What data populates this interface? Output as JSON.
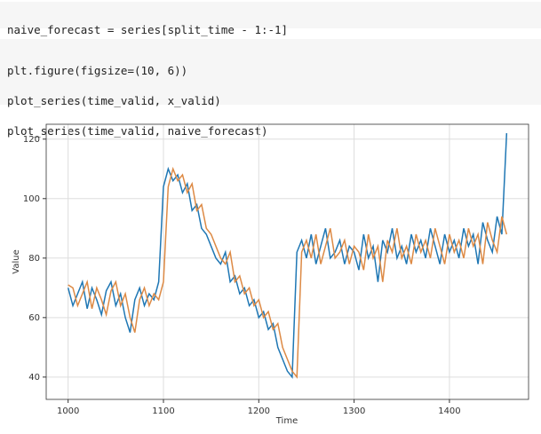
{
  "cells": [
    {
      "lines": [
        "naive_forecast = series[split_time - 1:-1]"
      ]
    },
    {
      "lines": [
        "plt.figure(figsize=(10, 6))",
        "plot_series(time_valid, x_valid)",
        "plot_series(time_valid, naive_forecast)"
      ]
    }
  ],
  "chart_data": {
    "type": "line",
    "xlabel": "Time",
    "ylabel": "Value",
    "x": [
      1000,
      1005,
      1010,
      1015,
      1020,
      1025,
      1030,
      1035,
      1040,
      1045,
      1050,
      1055,
      1060,
      1065,
      1070,
      1075,
      1080,
      1085,
      1090,
      1095,
      1100,
      1105,
      1110,
      1115,
      1120,
      1125,
      1130,
      1135,
      1140,
      1145,
      1150,
      1155,
      1160,
      1165,
      1170,
      1175,
      1180,
      1185,
      1190,
      1195,
      1200,
      1205,
      1210,
      1215,
      1220,
      1225,
      1230,
      1235,
      1240,
      1245,
      1250,
      1255,
      1260,
      1265,
      1270,
      1275,
      1280,
      1285,
      1290,
      1295,
      1300,
      1305,
      1310,
      1315,
      1320,
      1325,
      1330,
      1335,
      1340,
      1345,
      1350,
      1355,
      1360,
      1365,
      1370,
      1375,
      1380,
      1385,
      1390,
      1395,
      1400,
      1405,
      1410,
      1415,
      1420,
      1425,
      1430,
      1435,
      1440,
      1445,
      1450,
      1455,
      1460
    ],
    "series": [
      {
        "name": "x_valid",
        "color": "#1f77b4",
        "values": [
          70,
          64,
          68,
          72,
          63,
          70,
          66,
          61,
          69,
          72,
          64,
          68,
          60,
          55,
          66,
          70,
          64,
          68,
          66,
          72,
          104,
          110,
          106,
          108,
          102,
          105,
          96,
          98,
          90,
          88,
          84,
          80,
          78,
          82,
          72,
          74,
          68,
          70,
          64,
          66,
          60,
          62,
          56,
          58,
          50,
          46,
          42,
          40,
          82,
          86,
          80,
          88,
          78,
          84,
          90,
          80,
          82,
          86,
          78,
          84,
          82,
          76,
          88,
          80,
          84,
          72,
          86,
          82,
          90,
          80,
          84,
          78,
          88,
          82,
          86,
          80,
          90,
          84,
          78,
          88,
          82,
          86,
          80,
          90,
          84,
          88,
          78,
          92,
          86,
          82,
          94,
          88,
          122
        ]
      },
      {
        "name": "naive_forecast",
        "color": "#dd8a45",
        "values": [
          71,
          70,
          64,
          68,
          72,
          63,
          70,
          66,
          61,
          69,
          72,
          64,
          68,
          60,
          55,
          66,
          70,
          64,
          68,
          66,
          72,
          104,
          110,
          106,
          108,
          102,
          105,
          96,
          98,
          90,
          88,
          84,
          80,
          78,
          82,
          72,
          74,
          68,
          70,
          64,
          66,
          60,
          62,
          56,
          58,
          50,
          46,
          42,
          40,
          82,
          86,
          80,
          88,
          78,
          84,
          90,
          80,
          82,
          86,
          78,
          84,
          82,
          76,
          88,
          80,
          84,
          72,
          86,
          82,
          90,
          80,
          84,
          78,
          88,
          82,
          86,
          80,
          90,
          84,
          78,
          88,
          82,
          86,
          80,
          90,
          84,
          88,
          78,
          92,
          86,
          82,
          94,
          88
        ]
      }
    ],
    "xlim": [
      977,
      1483
    ],
    "xticks": [
      1000,
      1100,
      1200,
      1300,
      1400
    ],
    "ylim": [
      32.5,
      125
    ],
    "yticks": [
      40,
      60,
      80,
      100,
      120
    ],
    "grid": true
  }
}
